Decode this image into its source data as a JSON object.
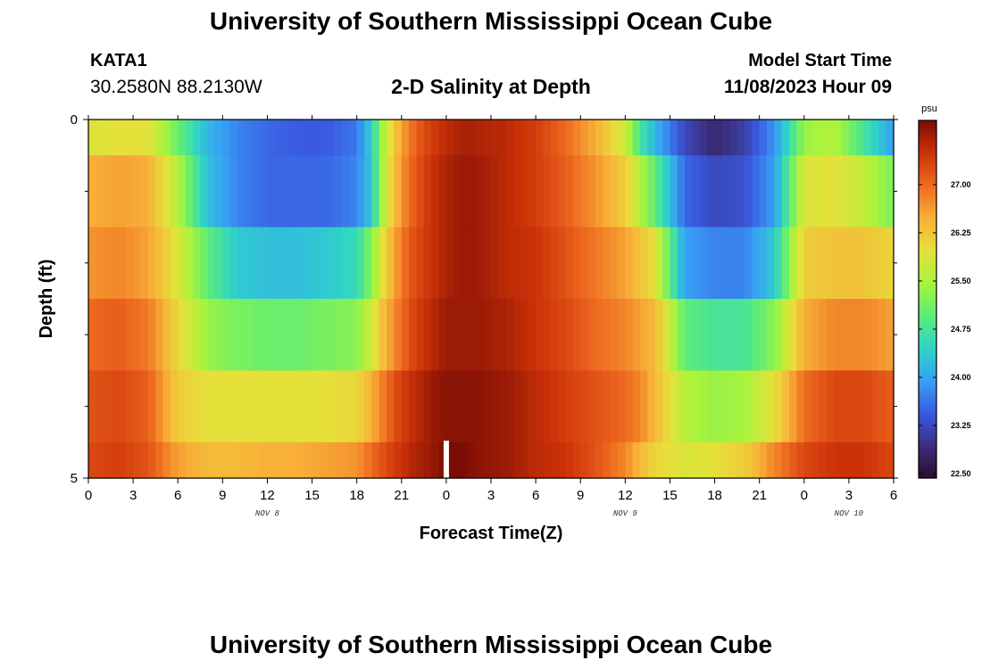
{
  "header": {
    "title": "University of Southern Mississippi Ocean Cube",
    "station_id": "KATA1",
    "station_coords": "30.2580N  88.2130W",
    "subtitle": "2-D Salinity at Depth",
    "model_start_label": "Model Start Time",
    "model_start_value": "11/08/2023 Hour 09"
  },
  "footer": {
    "title": "University of Southern Mississippi Ocean Cube"
  },
  "chart_data": {
    "type": "heatmap",
    "title": "2-D Salinity at Depth",
    "xlabel": "Forecast Time(Z)",
    "ylabel": "Depth (ft)",
    "x_start_hour": 0,
    "x_end_hour": 54,
    "x_tick_hours": [
      0,
      3,
      6,
      9,
      12,
      15,
      18,
      21,
      24,
      27,
      30,
      33,
      36,
      39,
      42,
      45,
      48,
      51,
      54
    ],
    "x_tick_labels": [
      "0",
      "3",
      "6",
      "9",
      "12",
      "15",
      "18",
      "21",
      "0",
      "3",
      "6",
      "9",
      "12",
      "15",
      "18",
      "21",
      "0",
      "3",
      "6"
    ],
    "date_labels": [
      {
        "text": "NOV 8",
        "hour": 12
      },
      {
        "text": "NOV 9",
        "hour": 36
      },
      {
        "text": "NOV 10",
        "hour": 51
      }
    ],
    "y_range": [
      0,
      5
    ],
    "y_tick_labels": [
      {
        "value": 0,
        "label": "0"
      },
      {
        "value": 5,
        "label": "5"
      }
    ],
    "y_minor_ticks": [
      1,
      2,
      3,
      4
    ],
    "row_depth_bounds": [
      [
        0,
        0.5
      ],
      [
        0.5,
        1.5
      ],
      [
        1.5,
        2.5
      ],
      [
        2.5,
        3.5
      ],
      [
        3.5,
        4.5
      ],
      [
        4.5,
        5
      ]
    ],
    "profile_hours": [
      0,
      2,
      4,
      6,
      8,
      10,
      12,
      14,
      16,
      18,
      19,
      20,
      21,
      22,
      23,
      24,
      25,
      26,
      28,
      30,
      32,
      34,
      36,
      37,
      38,
      40,
      42,
      44,
      46,
      48,
      50,
      52,
      54
    ],
    "salinity_rows": [
      [
        25.9,
        26.0,
        26.0,
        25.1,
        24.2,
        23.8,
        23.6,
        23.5,
        23.5,
        23.7,
        24.5,
        25.8,
        26.6,
        27.1,
        27.4,
        27.6,
        27.7,
        27.7,
        27.6,
        27.4,
        27.0,
        26.5,
        25.8,
        24.8,
        24.2,
        23.3,
        22.9,
        23.2,
        23.9,
        25.4,
        25.6,
        24.8,
        24.0
      ],
      [
        26.5,
        26.6,
        26.5,
        25.6,
        24.3,
        23.8,
        23.6,
        23.6,
        23.6,
        23.8,
        24.4,
        25.9,
        26.7,
        27.2,
        27.5,
        27.7,
        27.8,
        27.8,
        27.6,
        27.4,
        27.1,
        26.7,
        26.2,
        25.6,
        25.0,
        23.6,
        23.3,
        23.4,
        24.0,
        25.9,
        26.0,
        25.7,
        25.2
      ],
      [
        26.7,
        26.8,
        26.6,
        25.9,
        25.0,
        24.4,
        24.3,
        24.3,
        24.4,
        24.6,
        25.3,
        26.2,
        26.9,
        27.3,
        27.5,
        27.7,
        27.8,
        27.8,
        27.6,
        27.5,
        27.2,
        26.9,
        26.6,
        26.3,
        26.0,
        24.0,
        23.8,
        23.8,
        24.4,
        26.2,
        26.3,
        26.3,
        26.1
      ],
      [
        27.0,
        27.1,
        26.9,
        26.1,
        25.4,
        25.2,
        25.1,
        25.1,
        25.2,
        25.3,
        25.8,
        26.5,
        27.0,
        27.4,
        27.6,
        27.8,
        27.8,
        27.8,
        27.7,
        27.5,
        27.3,
        27.0,
        26.8,
        26.6,
        26.4,
        25.0,
        24.8,
        24.8,
        25.3,
        26.5,
        26.8,
        26.8,
        26.6
      ],
      [
        27.2,
        27.3,
        27.1,
        26.2,
        26.0,
        26.0,
        26.0,
        26.0,
        26.0,
        26.1,
        26.5,
        27.0,
        27.4,
        27.6,
        27.8,
        27.9,
        27.9,
        27.9,
        27.8,
        27.6,
        27.4,
        27.2,
        27.0,
        26.8,
        26.4,
        25.6,
        25.4,
        25.5,
        26.0,
        27.0,
        27.3,
        27.3,
        27.1
      ],
      [
        27.3,
        27.4,
        27.2,
        26.6,
        26.4,
        26.4,
        26.5,
        26.5,
        26.6,
        26.7,
        27.0,
        27.3,
        27.5,
        27.7,
        27.8,
        28.0,
        28.0,
        27.9,
        27.8,
        27.6,
        27.5,
        27.2,
        26.8,
        26.4,
        26.1,
        25.9,
        26.0,
        26.2,
        26.8,
        27.3,
        27.5,
        27.5,
        27.3
      ]
    ],
    "current_time_marker_hour": 24,
    "colorbar": {
      "unit": "psu",
      "min": 22.5,
      "max": 28.0,
      "tick_values": [
        22.5,
        23.25,
        24.0,
        24.75,
        25.5,
        26.25,
        27.0
      ],
      "tick_labels": [
        "22.50",
        "23.25",
        "24.00",
        "24.75",
        "25.50",
        "26.25",
        "27.00"
      ],
      "color_stops": [
        "#2a0c30",
        "#3b2f80",
        "#3a5ae0",
        "#38a0f5",
        "#2ed4c8",
        "#5cec78",
        "#a8f43c",
        "#e6e03a",
        "#f8b038",
        "#ee6a20",
        "#cc3208",
        "#7a0c04"
      ]
    }
  }
}
